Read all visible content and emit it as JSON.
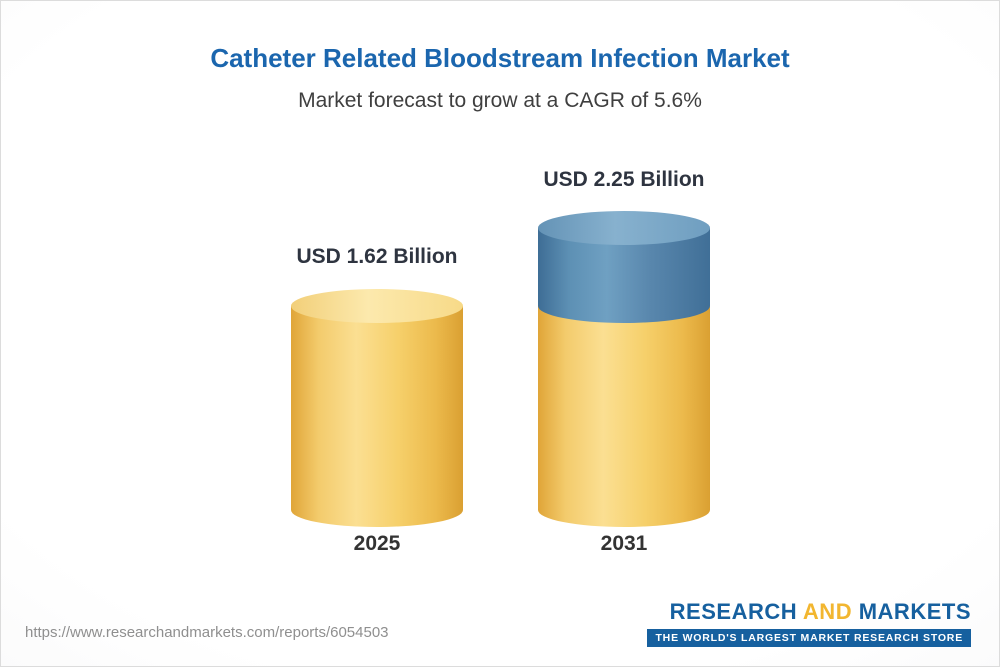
{
  "header": {
    "title": "Catheter Related Bloodstream Infection Market",
    "subtitle": "Market forecast to grow at a CAGR of 5.6%"
  },
  "chart_data": {
    "type": "bar",
    "style": "3d-cylinder",
    "categories": [
      "2025",
      "2031"
    ],
    "values": [
      1.62,
      2.25
    ],
    "unit": "USD Billion",
    "value_labels": [
      "USD 1.62 Billion",
      "USD 2.25 Billion"
    ],
    "cagr_percent": 5.6,
    "title": "Catheter Related Bloodstream Infection Market",
    "legend_position": "none",
    "grid": false,
    "colors": {
      "base_segment": "#f6cf6d",
      "growth_segment": "#5e90b4"
    },
    "notes": "2031 bar is drawn with a blue top segment representing growth above the 2025 base level"
  },
  "footer": {
    "url": "https://www.researchandmarkets.com/reports/6054503",
    "logo": {
      "word1": "RESEARCH",
      "word2": "AND",
      "word3": "MARKETS",
      "tagline": "THE WORLD'S LARGEST MARKET RESEARCH STORE",
      "brand_blue": "#16609f",
      "brand_gold": "#f2b630"
    }
  }
}
